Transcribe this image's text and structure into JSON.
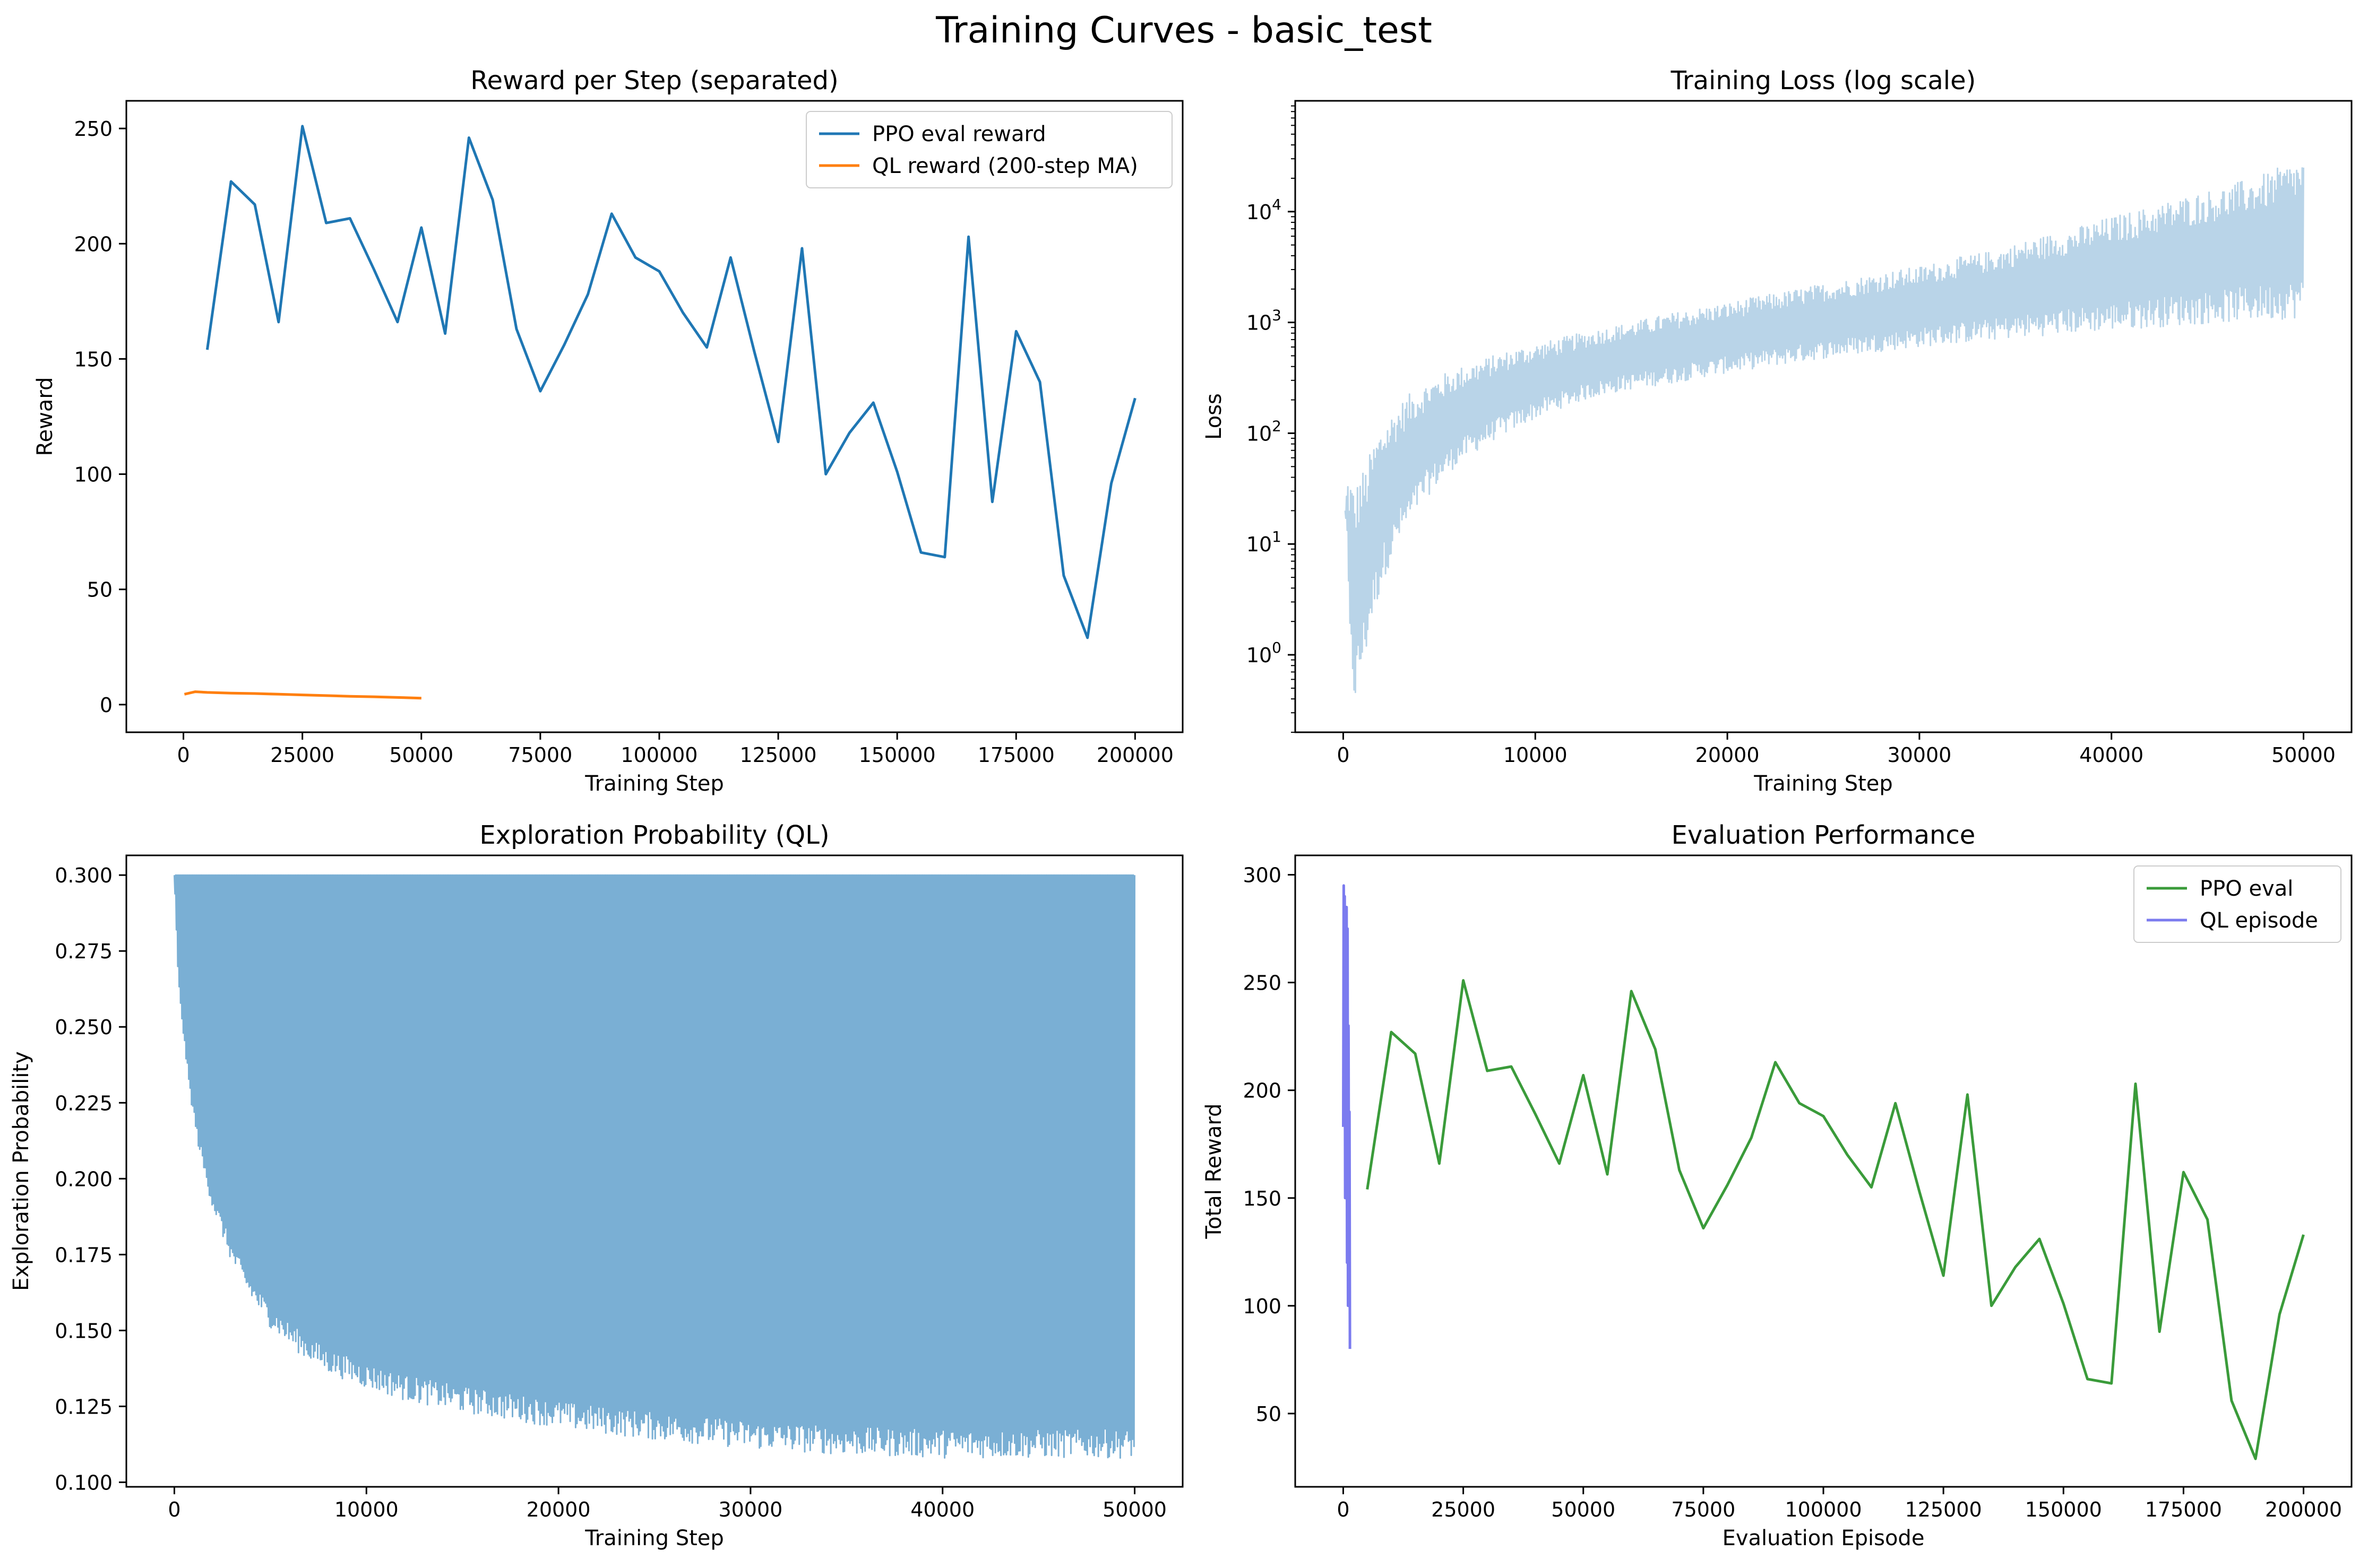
{
  "figure_title": "Training Curves - basic_test",
  "chart_data": [
    {
      "type": "line",
      "title": "Reward per Step (separated)",
      "xlabel": "Training Step",
      "ylabel": "Reward",
      "xlim": [
        -12000,
        210000
      ],
      "ylim": [
        -12,
        262
      ],
      "xticks": [
        0,
        25000,
        50000,
        75000,
        100000,
        125000,
        150000,
        175000,
        200000
      ],
      "yticks": [
        0,
        50,
        100,
        150,
        200,
        250
      ],
      "legend": "top-right",
      "series": [
        {
          "name": "PPO eval reward",
          "color": "#1f77b4",
          "x": [
            5000,
            10000,
            15000,
            20000,
            25000,
            30000,
            35000,
            40000,
            45000,
            50000,
            55000,
            60000,
            65000,
            70000,
            75000,
            80000,
            85000,
            90000,
            95000,
            100000,
            105000,
            110000,
            115000,
            120000,
            125000,
            130000,
            135000,
            140000,
            145000,
            150000,
            155000,
            160000,
            165000,
            170000,
            175000,
            180000,
            185000,
            190000,
            195000,
            200000
          ],
          "y": [
            154,
            227,
            217,
            166,
            251,
            209,
            211,
            189,
            166,
            207,
            161,
            246,
            219,
            163,
            136,
            156,
            178,
            213,
            194,
            188,
            170,
            155,
            194,
            153,
            114,
            198,
            100,
            118,
            131,
            101,
            66,
            64,
            203,
            88,
            162,
            140,
            56,
            29,
            96,
            133
          ]
        },
        {
          "name": "QL reward (200-step MA)",
          "color": "#ff7f0e",
          "x": [
            200,
            2500,
            5000,
            10000,
            15000,
            20000,
            25000,
            30000,
            35000,
            40000,
            45000,
            50000
          ],
          "y": [
            4.5,
            5.6,
            5.3,
            5.0,
            4.8,
            4.5,
            4.2,
            3.9,
            3.6,
            3.4,
            3.1,
            2.8
          ]
        }
      ]
    },
    {
      "type": "area",
      "title": "Training Loss (log scale)",
      "xlabel": "Training Step",
      "ylabel": "Loss",
      "yscale": "log",
      "xlim": [
        -2500,
        52500
      ],
      "ylim": [
        0.2,
        100000
      ],
      "xticks": [
        0,
        10000,
        20000,
        30000,
        40000,
        50000
      ],
      "yticks": [
        1,
        10,
        100,
        1000,
        10000
      ],
      "ytick_labels": [
        "10^0",
        "10^1",
        "10^2",
        "10^3",
        "10^4"
      ],
      "series": [
        {
          "color": "#b9d4e8",
          "x": [
            100,
            300,
            600,
            900,
            1200,
            1800,
            2500,
            3500,
            5000,
            7000,
            9000,
            11000,
            13000,
            15000,
            17000,
            20000,
            23000,
            26000,
            30000,
            34000,
            38000,
            42000,
            46000,
            48000,
            50000
          ],
          "y_low": [
            20,
            0.9,
            0.32,
            0.6,
            1.0,
            3,
            7,
            15,
            35,
            70,
            110,
            160,
            210,
            250,
            280,
            350,
            420,
            500,
            600,
            700,
            800,
            900,
            1000,
            1050,
            1100
          ],
          "y_high": [
            20,
            45,
            30,
            45,
            50,
            100,
            150,
            230,
            330,
            450,
            580,
            700,
            850,
            1000,
            1200,
            1500,
            1900,
            2400,
            3200,
            4500,
            7000,
            11000,
            17000,
            22000,
            30000
          ]
        }
      ]
    },
    {
      "type": "area",
      "title": "Exploration Probability (QL)",
      "xlabel": "Training Step",
      "ylabel": "Exploration Probability",
      "xlim": [
        -2500,
        52500
      ],
      "ylim": [
        0.0985,
        0.3065
      ],
      "xticks": [
        0,
        10000,
        20000,
        30000,
        40000,
        50000
      ],
      "yticks": [
        0.1,
        0.125,
        0.15,
        0.175,
        0.2,
        0.225,
        0.25,
        0.275,
        0.3
      ],
      "ytick_labels": [
        "0.100",
        "0.125",
        "0.150",
        "0.175",
        "0.200",
        "0.225",
        "0.250",
        "0.275",
        "0.300"
      ],
      "series": [
        {
          "color": "#7aafd4",
          "x": [
            0,
            200,
            500,
            800,
            1200,
            1600,
            2000,
            3000,
            4000,
            5000,
            6000,
            7000,
            8000,
            10000,
            12000,
            15000,
            18000,
            21000,
            25000,
            30000,
            35000,
            40000,
            45000,
            50000
          ],
          "y_low": [
            0.3,
            0.265,
            0.245,
            0.228,
            0.212,
            0.2,
            0.19,
            0.172,
            0.16,
            0.151,
            0.145,
            0.14,
            0.136,
            0.131,
            0.127,
            0.123,
            0.12,
            0.117,
            0.114,
            0.111,
            0.109,
            0.108,
            0.108,
            0.108
          ],
          "y_high": [
            0.3,
            0.3,
            0.3,
            0.3,
            0.3,
            0.3,
            0.3,
            0.3,
            0.3,
            0.3,
            0.3,
            0.3,
            0.3,
            0.3,
            0.3,
            0.3,
            0.3,
            0.3,
            0.3,
            0.3,
            0.3,
            0.3,
            0.3,
            0.3
          ]
        }
      ]
    },
    {
      "type": "line",
      "title": "Evaluation Performance",
      "xlabel": "Evaluation Episode",
      "ylabel": "Total Reward",
      "xlim": [
        -10000,
        210000
      ],
      "ylim": [
        16,
        309
      ],
      "xticks": [
        0,
        25000,
        50000,
        75000,
        100000,
        125000,
        150000,
        175000,
        200000
      ],
      "yticks": [
        50,
        100,
        150,
        200,
        250,
        300
      ],
      "legend": "top-right",
      "series": [
        {
          "name": "PPO eval",
          "color": "#3a9b3a",
          "x": [
            5000,
            10000,
            15000,
            20000,
            25000,
            30000,
            35000,
            40000,
            45000,
            50000,
            55000,
            60000,
            65000,
            70000,
            75000,
            80000,
            85000,
            90000,
            95000,
            100000,
            105000,
            110000,
            115000,
            120000,
            125000,
            130000,
            135000,
            140000,
            145000,
            150000,
            155000,
            160000,
            165000,
            170000,
            175000,
            180000,
            185000,
            190000,
            195000,
            200000
          ],
          "y": [
            154,
            227,
            217,
            166,
            251,
            209,
            211,
            189,
            166,
            207,
            161,
            246,
            219,
            163,
            136,
            156,
            178,
            213,
            194,
            188,
            170,
            155,
            194,
            153,
            114,
            198,
            100,
            118,
            131,
            101,
            66,
            64,
            203,
            88,
            162,
            140,
            56,
            29,
            96,
            133
          ]
        },
        {
          "name": "QL episode",
          "color": "#7b7bef",
          "x": [
            0,
            100,
            200,
            300,
            400,
            500,
            600,
            700,
            800,
            900,
            1000,
            1100,
            1200,
            1300,
            1400
          ],
          "y": [
            183,
            295,
            240,
            290,
            150,
            270,
            200,
            285,
            120,
            275,
            100,
            230,
            130,
            190,
            80
          ]
        }
      ]
    }
  ]
}
